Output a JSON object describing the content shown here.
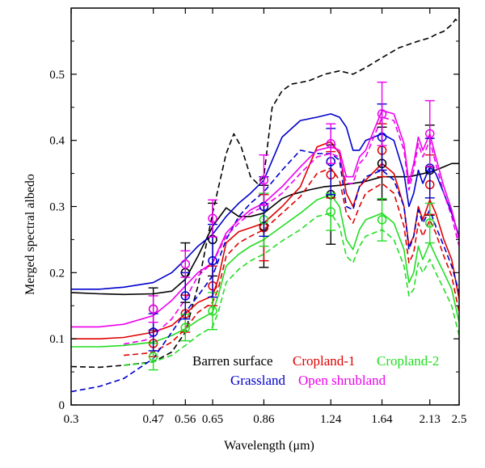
{
  "chart_data": {
    "type": "line",
    "title": "",
    "xlabel": "Wavelength (μm)",
    "ylabel": "Merged spectral albedo",
    "xlim": [
      0.3,
      2.5
    ],
    "ylim": [
      0,
      0.6
    ],
    "x_scale": "log",
    "x_ticks": [
      0.3,
      0.47,
      0.56,
      0.65,
      0.86,
      1.24,
      1.64,
      2.13,
      2.5
    ],
    "x_tick_labels": [
      "0.3",
      "0.47",
      "0.56",
      "0.65",
      "0.86",
      "1.24",
      "1.64",
      "2.13",
      "2.5"
    ],
    "y_ticks": [
      0,
      0.1,
      0.2,
      0.3,
      0.4,
      0.5
    ],
    "y_tick_labels": [
      "0",
      "0.1",
      "0.2",
      "0.3",
      "0.4",
      "0.5"
    ],
    "legend_position": "inside-bottom-right",
    "legend": [
      {
        "label": "Barren surface",
        "color": "#000000"
      },
      {
        "label": "Cropland-1",
        "color": "#e00000"
      },
      {
        "label": "Cropland-2",
        "color": "#22dd22"
      },
      {
        "label": "Grassland",
        "color": "#0000cc"
      },
      {
        "label": "Open shrubland",
        "color": "#ee00ee"
      }
    ],
    "series": [
      {
        "name": "Barren surface",
        "color": "#000000",
        "style": "solid",
        "x": [
          0.3,
          0.35,
          0.4,
          0.47,
          0.52,
          0.56,
          0.6,
          0.65,
          0.7,
          0.75,
          0.8,
          0.86,
          0.95,
          1.0,
          1.1,
          1.2,
          1.3,
          1.4,
          1.5,
          1.64,
          1.8,
          1.9,
          2.0,
          2.13,
          2.2,
          2.3,
          2.4,
          2.5
        ],
        "y": [
          0.17,
          0.168,
          0.167,
          0.168,
          0.172,
          0.19,
          0.225,
          0.27,
          0.298,
          0.285,
          0.285,
          0.29,
          0.312,
          0.318,
          0.325,
          0.33,
          0.332,
          0.335,
          0.338,
          0.345,
          0.345,
          0.345,
          0.348,
          0.352,
          0.355,
          0.36,
          0.365,
          0.365
        ]
      },
      {
        "name": "Barren surface",
        "color": "#000000",
        "style": "dashed",
        "x": [
          0.3,
          0.35,
          0.4,
          0.47,
          0.52,
          0.56,
          0.6,
          0.65,
          0.7,
          0.73,
          0.76,
          0.8,
          0.83,
          0.86,
          0.9,
          0.95,
          1.0,
          1.1,
          1.2,
          1.3,
          1.4,
          1.5,
          1.64,
          1.8,
          2.0,
          2.13,
          2.2,
          2.3,
          2.4,
          2.45,
          2.5
        ],
        "y": [
          0.058,
          0.057,
          0.06,
          0.065,
          0.08,
          0.11,
          0.18,
          0.29,
          0.38,
          0.41,
          0.39,
          0.345,
          0.335,
          0.345,
          0.45,
          0.475,
          0.485,
          0.49,
          0.5,
          0.505,
          0.5,
          0.51,
          0.525,
          0.54,
          0.55,
          0.555,
          0.56,
          0.565,
          0.575,
          0.583,
          0.578
        ]
      },
      {
        "name": "Cropland-1",
        "color": "#e00000",
        "style": "solid",
        "x": [
          0.3,
          0.35,
          0.4,
          0.47,
          0.52,
          0.56,
          0.6,
          0.65,
          0.67,
          0.7,
          0.75,
          0.8,
          0.86,
          0.95,
          1.05,
          1.15,
          1.24,
          1.3,
          1.35,
          1.4,
          1.45,
          1.5,
          1.64,
          1.75,
          1.85,
          1.9,
          1.95,
          2.0,
          2.05,
          2.13,
          2.2,
          2.3,
          2.4,
          2.5
        ],
        "y": [
          0.1,
          0.1,
          0.102,
          0.11,
          0.12,
          0.138,
          0.155,
          0.165,
          0.19,
          0.245,
          0.262,
          0.268,
          0.275,
          0.3,
          0.33,
          0.39,
          0.398,
          0.38,
          0.32,
          0.3,
          0.33,
          0.34,
          0.365,
          0.35,
          0.3,
          0.24,
          0.255,
          0.3,
          0.28,
          0.31,
          0.29,
          0.25,
          0.22,
          0.16
        ]
      },
      {
        "name": "Cropland-1",
        "color": "#e00000",
        "style": "dashed",
        "x": [
          0.4,
          0.45,
          0.47,
          0.52,
          0.56,
          0.6,
          0.65,
          0.67,
          0.7,
          0.75,
          0.8,
          0.86,
          0.95,
          1.05,
          1.15,
          1.24,
          1.3,
          1.35,
          1.4,
          1.45,
          1.5,
          1.64,
          1.75,
          1.85,
          1.9,
          1.95,
          2.0,
          2.05,
          2.13,
          2.2,
          2.3,
          2.4,
          2.5
        ],
        "y": [
          0.075,
          0.078,
          0.08,
          0.095,
          0.115,
          0.14,
          0.155,
          0.175,
          0.225,
          0.245,
          0.255,
          0.265,
          0.29,
          0.315,
          0.35,
          0.358,
          0.34,
          0.29,
          0.275,
          0.3,
          0.32,
          0.335,
          0.32,
          0.27,
          0.215,
          0.23,
          0.275,
          0.255,
          0.28,
          0.26,
          0.225,
          0.195,
          0.14
        ]
      },
      {
        "name": "Cropland-2",
        "color": "#22dd22",
        "style": "solid",
        "x": [
          0.3,
          0.35,
          0.4,
          0.47,
          0.52,
          0.56,
          0.6,
          0.65,
          0.67,
          0.7,
          0.75,
          0.8,
          0.86,
          0.95,
          1.05,
          1.15,
          1.24,
          1.3,
          1.35,
          1.4,
          1.45,
          1.5,
          1.64,
          1.75,
          1.85,
          1.9,
          1.95,
          2.0,
          2.05,
          2.13,
          2.2,
          2.3,
          2.4,
          2.5
        ],
        "y": [
          0.088,
          0.088,
          0.09,
          0.095,
          0.105,
          0.115,
          0.128,
          0.14,
          0.165,
          0.21,
          0.228,
          0.24,
          0.25,
          0.27,
          0.29,
          0.31,
          0.318,
          0.3,
          0.25,
          0.235,
          0.265,
          0.28,
          0.29,
          0.275,
          0.235,
          0.185,
          0.2,
          0.24,
          0.22,
          0.245,
          0.225,
          0.2,
          0.175,
          0.125
        ]
      },
      {
        "name": "Cropland-2",
        "color": "#22dd22",
        "style": "dashed",
        "x": [
          0.4,
          0.45,
          0.47,
          0.52,
          0.56,
          0.6,
          0.65,
          0.67,
          0.7,
          0.75,
          0.8,
          0.86,
          0.95,
          1.05,
          1.15,
          1.24,
          1.3,
          1.35,
          1.4,
          1.45,
          1.5,
          1.64,
          1.75,
          1.85,
          1.9,
          1.95,
          2.0,
          2.05,
          2.13,
          2.2,
          2.3,
          2.4,
          2.5
        ],
        "y": [
          0.06,
          0.063,
          0.065,
          0.075,
          0.09,
          0.105,
          0.118,
          0.14,
          0.185,
          0.205,
          0.218,
          0.228,
          0.248,
          0.265,
          0.285,
          0.29,
          0.27,
          0.225,
          0.215,
          0.24,
          0.255,
          0.265,
          0.25,
          0.21,
          0.165,
          0.175,
          0.215,
          0.2,
          0.22,
          0.2,
          0.175,
          0.15,
          0.105
        ]
      },
      {
        "name": "Grassland",
        "color": "#0000cc",
        "style": "solid",
        "x": [
          0.3,
          0.35,
          0.4,
          0.47,
          0.52,
          0.56,
          0.6,
          0.65,
          0.7,
          0.75,
          0.8,
          0.86,
          0.95,
          1.05,
          1.15,
          1.24,
          1.3,
          1.35,
          1.4,
          1.45,
          1.5,
          1.64,
          1.75,
          1.85,
          1.9,
          1.95,
          2.0,
          2.05,
          2.13,
          2.2,
          2.3,
          2.4,
          2.5
        ],
        "y": [
          0.175,
          0.175,
          0.178,
          0.185,
          0.2,
          0.22,
          0.24,
          0.258,
          0.285,
          0.305,
          0.32,
          0.34,
          0.405,
          0.43,
          0.435,
          0.44,
          0.435,
          0.42,
          0.385,
          0.385,
          0.4,
          0.41,
          0.4,
          0.35,
          0.3,
          0.32,
          0.355,
          0.335,
          0.36,
          0.35,
          0.32,
          0.29,
          0.255
        ]
      },
      {
        "name": "Grassland",
        "color": "#0000cc",
        "style": "dashed",
        "x": [
          0.3,
          0.35,
          0.4,
          0.47,
          0.52,
          0.56,
          0.6,
          0.65,
          0.7,
          0.75,
          0.8,
          0.86,
          0.95,
          1.05,
          1.15,
          1.24,
          1.3,
          1.35,
          1.4,
          1.45,
          1.5,
          1.64,
          1.75,
          1.85,
          1.9,
          1.95,
          2.0,
          2.05,
          2.13,
          2.2,
          2.3,
          2.4,
          2.5
        ],
        "y": [
          0.02,
          0.028,
          0.04,
          0.07,
          0.11,
          0.14,
          0.165,
          0.195,
          0.25,
          0.285,
          0.305,
          0.322,
          0.355,
          0.385,
          0.38,
          0.38,
          0.37,
          0.3,
          0.295,
          0.33,
          0.345,
          0.355,
          0.34,
          0.3,
          0.235,
          0.255,
          0.295,
          0.275,
          0.295,
          0.27,
          0.24,
          0.21,
          0.17
        ]
      },
      {
        "name": "Open shrubland",
        "color": "#ee00ee",
        "style": "solid",
        "x": [
          0.3,
          0.35,
          0.4,
          0.47,
          0.52,
          0.56,
          0.6,
          0.65,
          0.7,
          0.75,
          0.8,
          0.86,
          0.95,
          1.05,
          1.15,
          1.24,
          1.3,
          1.35,
          1.4,
          1.45,
          1.5,
          1.64,
          1.75,
          1.85,
          1.9,
          1.95,
          2.0,
          2.05,
          2.13,
          2.2,
          2.3,
          2.4,
          2.5
        ],
        "y": [
          0.118,
          0.118,
          0.122,
          0.135,
          0.158,
          0.18,
          0.2,
          0.215,
          0.26,
          0.28,
          0.295,
          0.305,
          0.33,
          0.36,
          0.385,
          0.39,
          0.385,
          0.345,
          0.345,
          0.375,
          0.385,
          0.445,
          0.44,
          0.395,
          0.335,
          0.365,
          0.405,
          0.385,
          0.41,
          0.375,
          0.33,
          0.295,
          0.25
        ]
      },
      {
        "name": "Open shrubland",
        "color": "#ee00ee",
        "style": "dashed",
        "x": [
          0.4,
          0.45,
          0.47,
          0.52,
          0.56,
          0.6,
          0.65,
          0.7,
          0.75,
          0.8,
          0.86,
          0.95,
          1.05,
          1.15,
          1.24,
          1.3,
          1.35,
          1.4,
          1.45,
          1.5,
          1.64,
          1.75,
          1.85,
          1.9,
          1.95,
          2.0,
          2.05,
          2.13,
          2.2,
          2.3,
          2.4,
          2.5
        ],
        "y": [
          0.092,
          0.098,
          0.105,
          0.13,
          0.16,
          0.195,
          0.215,
          0.255,
          0.275,
          0.29,
          0.3,
          0.32,
          0.35,
          0.375,
          0.38,
          0.375,
          0.335,
          0.335,
          0.365,
          0.375,
          0.435,
          0.43,
          0.385,
          0.325,
          0.355,
          0.395,
          0.375,
          0.4,
          0.365,
          0.32,
          0.285,
          0.24
        ]
      }
    ],
    "error_bars": [
      {
        "series": "Barren surface",
        "color": "#000000",
        "x": [
          0.47,
          0.56,
          0.65,
          0.86,
          1.24,
          1.64,
          2.13
        ],
        "y": [
          0.145,
          0.2,
          0.25,
          0.27,
          0.318,
          0.365,
          0.355
        ],
        "err": [
          0.032,
          0.045,
          0.055,
          0.062,
          0.075,
          0.055,
          0.068
        ]
      },
      {
        "series": "Cropland-1",
        "color": "#e00000",
        "x": [
          0.47,
          0.56,
          0.65,
          0.86,
          1.24,
          1.64,
          2.13
        ],
        "y": [
          0.093,
          0.138,
          0.18,
          0.268,
          0.348,
          0.385,
          0.333
        ],
        "err": [
          0.02,
          0.028,
          0.03,
          0.05,
          0.035,
          0.04,
          0.045
        ]
      },
      {
        "series": "Cropland-2",
        "color": "#22dd22",
        "x": [
          0.47,
          0.56,
          0.65,
          0.86,
          1.24,
          1.64,
          2.13
        ],
        "y": [
          0.073,
          0.117,
          0.142,
          0.28,
          0.292,
          0.28,
          0.275
        ],
        "err": [
          0.02,
          0.02,
          0.028,
          0.04,
          0.028,
          0.032,
          0.03
        ]
      },
      {
        "series": "Grassland",
        "color": "#0000cc",
        "x": [
          0.47,
          0.56,
          0.65,
          0.86,
          1.24,
          1.64,
          2.13
        ],
        "y": [
          0.11,
          0.165,
          0.218,
          0.3,
          0.368,
          0.405,
          0.358
        ],
        "err": [
          0.028,
          0.035,
          0.055,
          0.045,
          0.05,
          0.05,
          0.045
        ]
      },
      {
        "series": "Open shrubland",
        "color": "#ee00ee",
        "x": [
          0.47,
          0.56,
          0.65,
          0.86,
          1.24,
          1.64,
          2.13
        ],
        "y": [
          0.145,
          0.213,
          0.282,
          0.34,
          0.395,
          0.44,
          0.41
        ],
        "err": [
          0.02,
          0.02,
          0.028,
          0.038,
          0.03,
          0.048,
          0.05
        ]
      }
    ]
  }
}
